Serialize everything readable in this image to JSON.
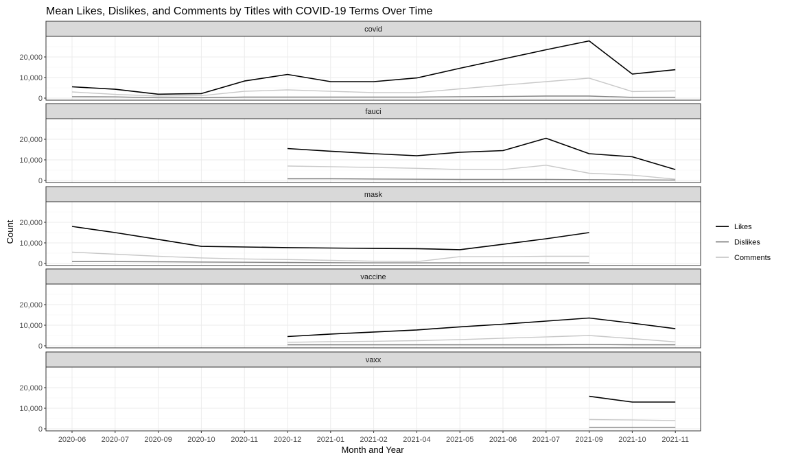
{
  "chart_data": {
    "type": "line",
    "title": "Mean Likes, Dislikes, and Comments by Titles with COVID-19 Terms Over Time",
    "xlabel": "Month and Year",
    "ylabel": "Count",
    "ylim": [
      0,
      30000
    ],
    "yticks": [
      0,
      10000,
      20000
    ],
    "ytick_labels": [
      "0",
      "10,000",
      "20,000"
    ],
    "categories": [
      "2020-06",
      "2020-07",
      "2020-09",
      "2020-10",
      "2020-11",
      "2020-12",
      "2021-01",
      "2021-02",
      "2021-04",
      "2021-05",
      "2021-06",
      "2021-07",
      "2021-09",
      "2021-10",
      "2021-11"
    ],
    "grid": true,
    "legend_position": "right",
    "legend": [
      {
        "name": "Likes",
        "color": "#000000"
      },
      {
        "name": "Dislikes",
        "color": "#808080"
      },
      {
        "name": "Comments",
        "color": "#c8c8c8"
      }
    ],
    "facets": [
      {
        "label": "covid",
        "series": [
          {
            "name": "Likes",
            "values": [
              5500,
              4300,
              1900,
              2200,
              8300,
              11500,
              8000,
              8000,
              9800,
              14500,
              19000,
              23500,
              27800,
              11700,
              13800
            ]
          },
          {
            "name": "Dislikes",
            "values": [
              700,
              600,
              200,
              200,
              500,
              500,
              500,
              500,
              500,
              700,
              800,
              1000,
              1000,
              400,
              400
            ]
          },
          {
            "name": "Comments",
            "values": [
              3000,
              1800,
              1000,
              1200,
              3300,
              4000,
              3300,
              2700,
              2700,
              4500,
              6300,
              8000,
              9700,
              3200,
              3500
            ]
          }
        ]
      },
      {
        "label": "fauci",
        "series": [
          {
            "name": "Likes",
            "values": [
              null,
              null,
              null,
              null,
              null,
              15500,
              14200,
              13000,
              12000,
              13700,
              14500,
              20500,
              13000,
              11500,
              5300
            ]
          },
          {
            "name": "Dislikes",
            "values": [
              null,
              null,
              null,
              null,
              null,
              800,
              800,
              700,
              600,
              500,
              500,
              500,
              400,
              300,
              200
            ]
          },
          {
            "name": "Comments",
            "values": [
              null,
              null,
              null,
              null,
              null,
              7000,
              6700,
              6300,
              5900,
              5300,
              5300,
              7400,
              3500,
              2600,
              600
            ]
          }
        ]
      },
      {
        "label": "mask",
        "series": [
          {
            "name": "Likes",
            "values": [
              18000,
              15000,
              11700,
              8300,
              8000,
              7700,
              7500,
              7300,
              7200,
              6700,
              9300,
              12000,
              15000,
              null,
              null
            ]
          },
          {
            "name": "Dislikes",
            "values": [
              900,
              900,
              800,
              700,
              600,
              500,
              400,
              300,
              300,
              300,
              300,
              300,
              300,
              null,
              null
            ]
          },
          {
            "name": "Comments",
            "values": [
              5500,
              4500,
              3500,
              2700,
              2200,
              1900,
              1500,
              1100,
              900,
              3300,
              3300,
              3500,
              3500,
              null,
              null
            ]
          }
        ]
      },
      {
        "label": "vaccine",
        "series": [
          {
            "name": "Likes",
            "values": [
              null,
              null,
              null,
              null,
              null,
              4500,
              5700,
              6700,
              7700,
              9200,
              10500,
              12000,
              13500,
              11000,
              8300
            ]
          },
          {
            "name": "Dislikes",
            "values": [
              null,
              null,
              null,
              null,
              null,
              500,
              500,
              500,
              500,
              500,
              500,
              500,
              600,
              500,
              500
            ]
          },
          {
            "name": "Comments",
            "values": [
              null,
              null,
              null,
              null,
              null,
              1700,
              2000,
              2200,
              2500,
              3000,
              3700,
              4300,
              5000,
              3500,
              1900
            ]
          }
        ]
      },
      {
        "label": "vaxx",
        "series": [
          {
            "name": "Likes",
            "values": [
              null,
              null,
              null,
              null,
              null,
              null,
              null,
              null,
              null,
              null,
              null,
              null,
              15800,
              13000,
              13000
            ]
          },
          {
            "name": "Dislikes",
            "values": [
              null,
              null,
              null,
              null,
              null,
              null,
              null,
              null,
              null,
              null,
              null,
              null,
              700,
              700,
              700
            ]
          },
          {
            "name": "Comments",
            "values": [
              null,
              null,
              null,
              null,
              null,
              null,
              null,
              null,
              null,
              null,
              null,
              null,
              4500,
              4300,
              4000
            ]
          }
        ]
      }
    ]
  }
}
